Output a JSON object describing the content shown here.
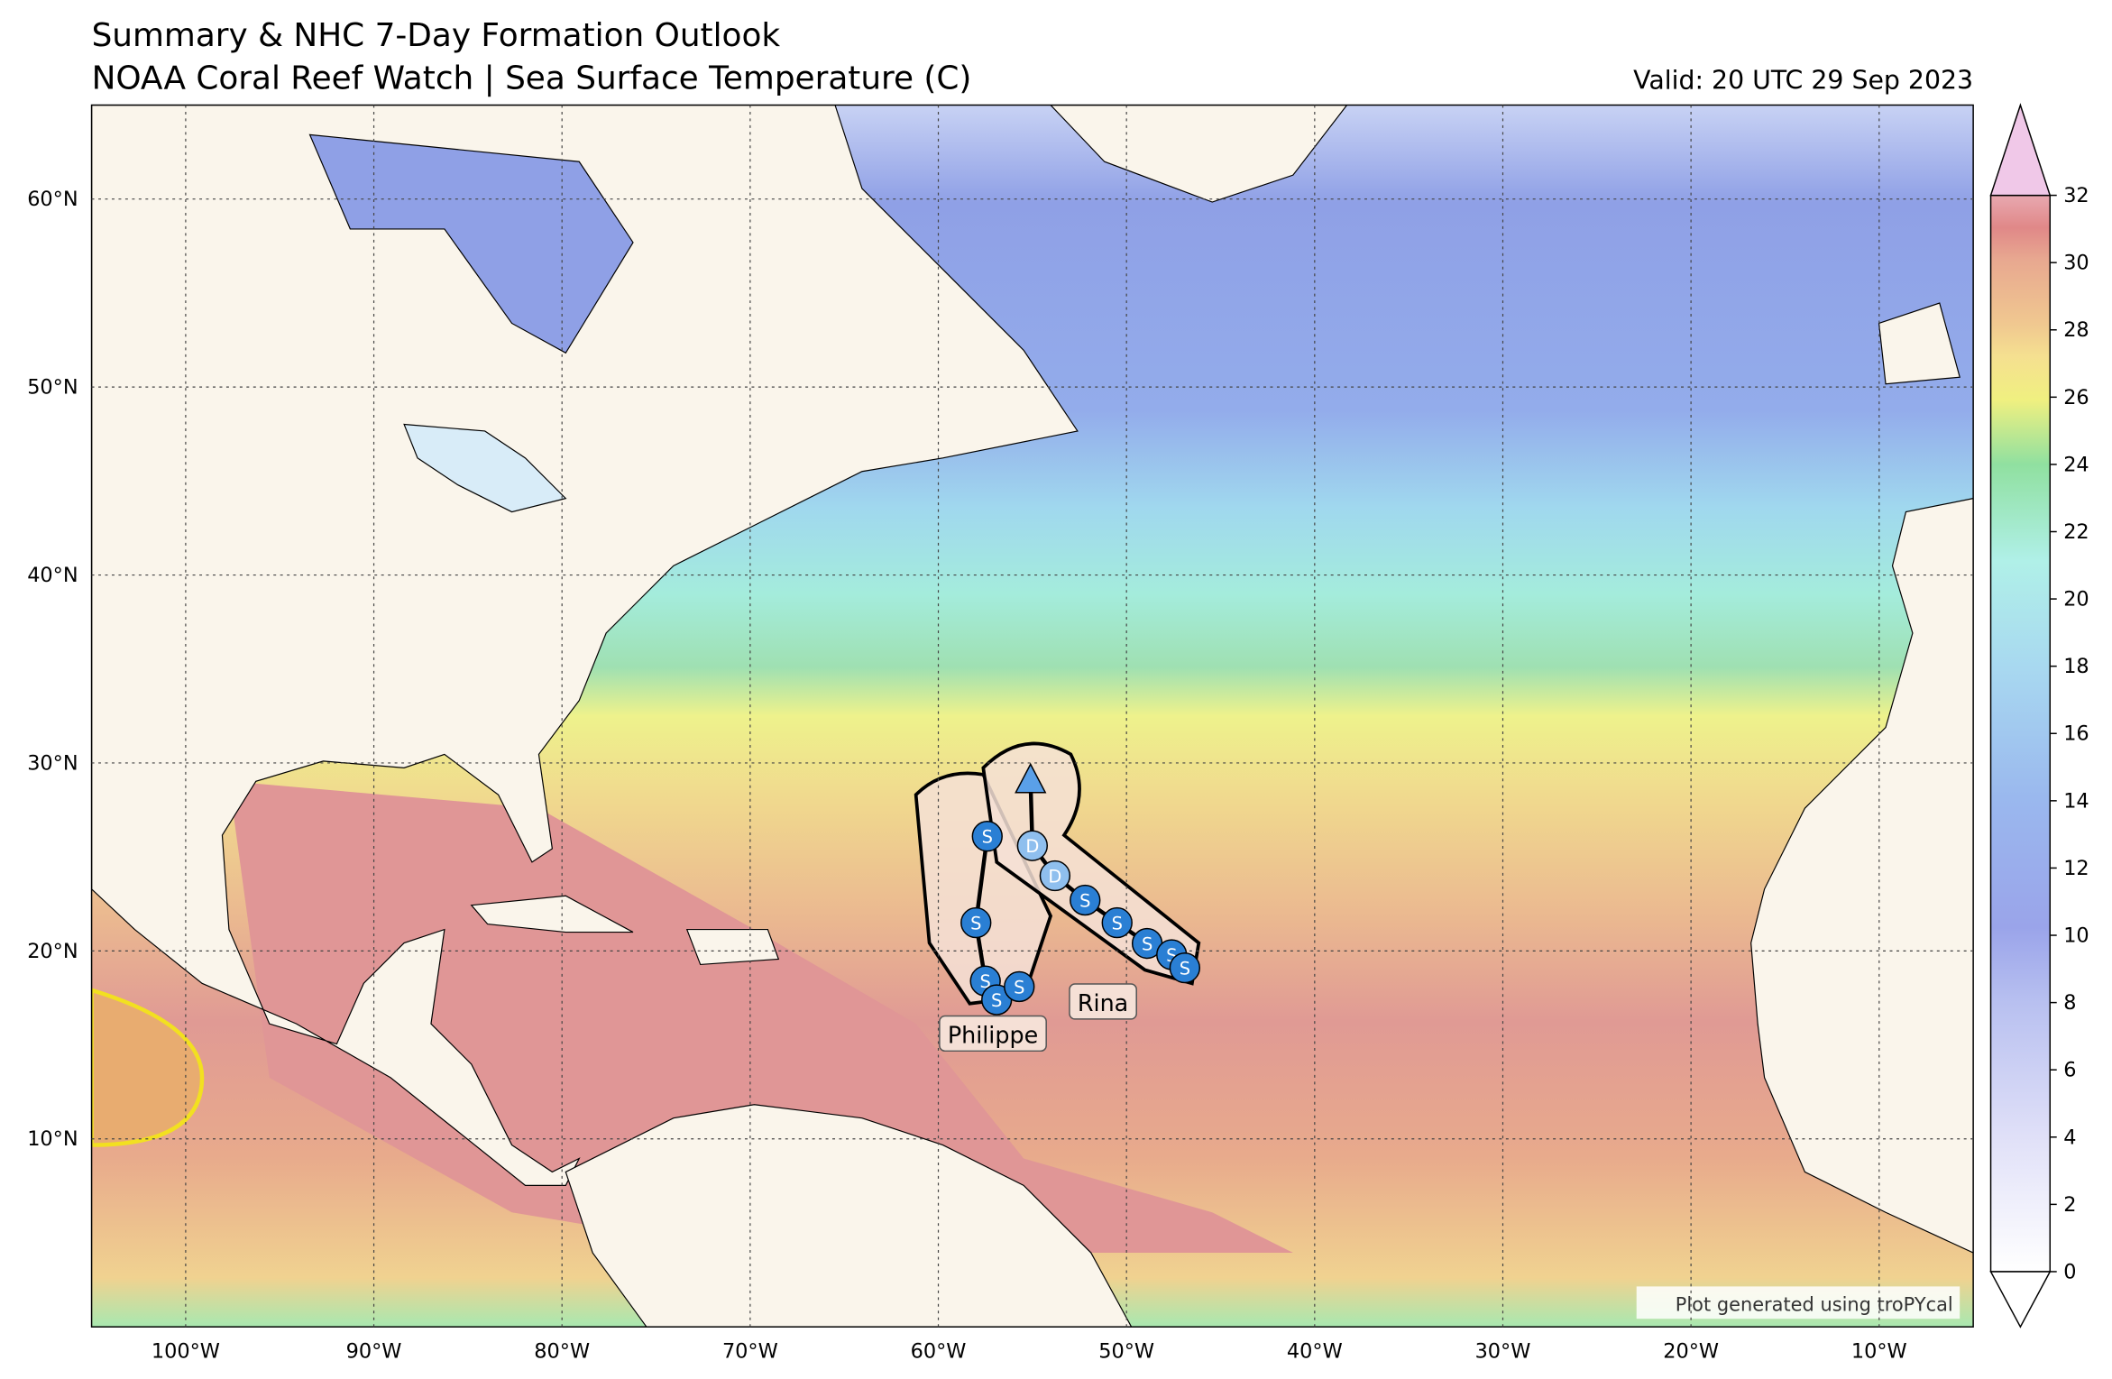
{
  "header": {
    "title": "Summary & NHC 7-Day Formation Outlook",
    "subtitle": "NOAA Coral Reef Watch | Sea Surface Temperature (C)",
    "valid": "Valid: 20 UTC 29 Sep 2023"
  },
  "map": {
    "xlim": [
      -105,
      -5
    ],
    "ylim": [
      0,
      65
    ],
    "xticks": [
      {
        "value": -100,
        "label": "100°W"
      },
      {
        "value": -90,
        "label": "90°W"
      },
      {
        "value": -80,
        "label": "80°W"
      },
      {
        "value": -70,
        "label": "70°W"
      },
      {
        "value": -60,
        "label": "60°W"
      },
      {
        "value": -50,
        "label": "50°W"
      },
      {
        "value": -40,
        "label": "40°W"
      },
      {
        "value": -30,
        "label": "30°W"
      },
      {
        "value": -20,
        "label": "20°W"
      },
      {
        "value": -10,
        "label": "10°W"
      }
    ],
    "yticks": [
      {
        "value": 10,
        "label": "10°N"
      },
      {
        "value": 20,
        "label": "20°N"
      },
      {
        "value": 30,
        "label": "30°N"
      },
      {
        "value": 40,
        "label": "40°N"
      },
      {
        "value": 50,
        "label": "50°N"
      },
      {
        "value": 60,
        "label": "60°N"
      }
    ]
  },
  "colorbar": {
    "ylim": [
      0,
      32
    ],
    "yticks": [
      0,
      2,
      4,
      6,
      8,
      10,
      12,
      14,
      16,
      18,
      20,
      22,
      24,
      26,
      28,
      30,
      32
    ]
  },
  "storms": [
    {
      "name": "Philippe",
      "lon": [
        -57.4,
        -58.0,
        -57.5,
        -56.9,
        -55.7
      ],
      "lat": [
        26.1,
        21.5,
        18.4,
        17.4,
        18.1
      ],
      "symbols": [
        "S",
        "S",
        "S",
        "S",
        "S"
      ]
    },
    {
      "name": "Rina",
      "lon": [
        -55.1,
        -55.0,
        -53.8,
        -52.2,
        -50.5,
        -48.9,
        -47.6,
        -46.9
      ],
      "lat": [
        29.0,
        25.6,
        24.0,
        22.7,
        21.5,
        20.4,
        19.8,
        19.1
      ],
      "symbols": [
        null,
        "D",
        "D",
        "S",
        "S",
        "S",
        "S",
        "S"
      ]
    }
  ],
  "credit": "Plot generated using troPYcal"
}
